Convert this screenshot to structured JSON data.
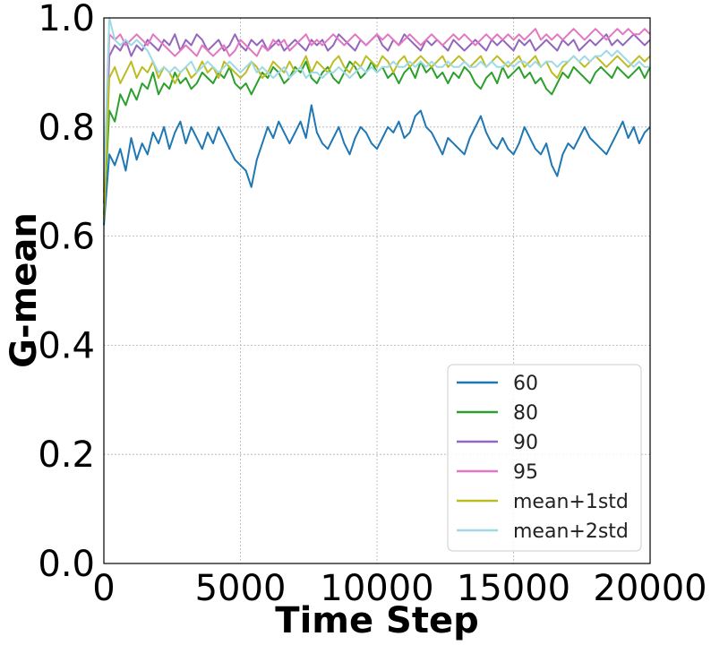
{
  "chart_data": {
    "type": "line",
    "xlabel": "Time Step",
    "ylabel": "G-mean",
    "xlim": [
      0,
      20000
    ],
    "ylim": [
      0.0,
      1.0
    ],
    "xticks": [
      0,
      5000,
      10000,
      15000,
      20000
    ],
    "xtick_labels": [
      "0",
      "5000",
      "10000",
      "15000",
      "20000"
    ],
    "yticks": [
      0.0,
      0.2,
      0.4,
      0.6,
      0.8,
      1.0
    ],
    "ytick_labels": [
      "0.0",
      "0.2",
      "0.4",
      "0.6",
      "0.8",
      "1.0"
    ],
    "grid": true,
    "legend_position": "lower-right",
    "x": [
      0,
      200,
      400,
      600,
      800,
      1000,
      1200,
      1400,
      1600,
      1800,
      2000,
      2200,
      2400,
      2600,
      2800,
      3000,
      3200,
      3400,
      3600,
      3800,
      4000,
      4200,
      4400,
      4600,
      4800,
      5000,
      5200,
      5400,
      5600,
      5800,
      6000,
      6200,
      6400,
      6600,
      6800,
      7000,
      7200,
      7400,
      7600,
      7800,
      8000,
      8200,
      8400,
      8600,
      8800,
      9000,
      9200,
      9400,
      9600,
      9800,
      10000,
      10200,
      10400,
      10600,
      10800,
      11000,
      11200,
      11400,
      11600,
      11800,
      12000,
      12200,
      12400,
      12600,
      12800,
      13000,
      13200,
      13400,
      13600,
      13800,
      14000,
      14200,
      14400,
      14600,
      14800,
      15000,
      15200,
      15400,
      15600,
      15800,
      16000,
      16200,
      16400,
      16600,
      16800,
      17000,
      17200,
      17400,
      17600,
      17800,
      18000,
      18200,
      18400,
      18600,
      18800,
      19000,
      19200,
      19400,
      19600,
      19800,
      20000
    ],
    "series": [
      {
        "name": "60",
        "color": "#1f77b4",
        "values": [
          0.62,
          0.75,
          0.73,
          0.76,
          0.72,
          0.78,
          0.74,
          0.77,
          0.75,
          0.79,
          0.77,
          0.8,
          0.76,
          0.79,
          0.81,
          0.77,
          0.8,
          0.78,
          0.76,
          0.79,
          0.77,
          0.8,
          0.78,
          0.76,
          0.74,
          0.73,
          0.72,
          0.69,
          0.74,
          0.77,
          0.8,
          0.78,
          0.81,
          0.79,
          0.77,
          0.79,
          0.81,
          0.78,
          0.84,
          0.79,
          0.77,
          0.76,
          0.78,
          0.8,
          0.77,
          0.75,
          0.78,
          0.8,
          0.79,
          0.77,
          0.76,
          0.78,
          0.8,
          0.79,
          0.81,
          0.78,
          0.79,
          0.82,
          0.83,
          0.8,
          0.79,
          0.77,
          0.75,
          0.78,
          0.77,
          0.76,
          0.75,
          0.78,
          0.8,
          0.82,
          0.79,
          0.77,
          0.76,
          0.78,
          0.76,
          0.75,
          0.77,
          0.8,
          0.78,
          0.76,
          0.75,
          0.77,
          0.73,
          0.71,
          0.75,
          0.77,
          0.76,
          0.78,
          0.8,
          0.78,
          0.77,
          0.76,
          0.75,
          0.77,
          0.79,
          0.81,
          0.78,
          0.8,
          0.77,
          0.79,
          0.8
        ]
      },
      {
        "name": "80",
        "color": "#2ca02c",
        "values": [
          0.64,
          0.83,
          0.81,
          0.86,
          0.84,
          0.87,
          0.85,
          0.88,
          0.87,
          0.9,
          0.86,
          0.88,
          0.87,
          0.9,
          0.88,
          0.89,
          0.87,
          0.88,
          0.9,
          0.89,
          0.88,
          0.9,
          0.89,
          0.91,
          0.88,
          0.87,
          0.88,
          0.86,
          0.88,
          0.9,
          0.89,
          0.91,
          0.9,
          0.88,
          0.89,
          0.91,
          0.9,
          0.92,
          0.89,
          0.88,
          0.9,
          0.91,
          0.89,
          0.88,
          0.9,
          0.92,
          0.91,
          0.89,
          0.9,
          0.92,
          0.9,
          0.91,
          0.89,
          0.9,
          0.88,
          0.9,
          0.91,
          0.89,
          0.92,
          0.9,
          0.91,
          0.89,
          0.9,
          0.88,
          0.9,
          0.89,
          0.91,
          0.9,
          0.88,
          0.87,
          0.89,
          0.9,
          0.88,
          0.91,
          0.89,
          0.9,
          0.91,
          0.89,
          0.9,
          0.88,
          0.89,
          0.87,
          0.86,
          0.88,
          0.9,
          0.89,
          0.91,
          0.9,
          0.89,
          0.88,
          0.9,
          0.91,
          0.9,
          0.89,
          0.91,
          0.9,
          0.89,
          0.9,
          0.91,
          0.89,
          0.91
        ]
      },
      {
        "name": "90",
        "color": "#9467bd",
        "values": [
          0.66,
          0.93,
          0.95,
          0.94,
          0.96,
          0.93,
          0.95,
          0.94,
          0.96,
          0.95,
          0.94,
          0.96,
          0.95,
          0.97,
          0.94,
          0.96,
          0.95,
          0.97,
          0.96,
          0.94,
          0.95,
          0.96,
          0.94,
          0.95,
          0.97,
          0.95,
          0.94,
          0.96,
          0.95,
          0.96,
          0.94,
          0.95,
          0.96,
          0.94,
          0.95,
          0.96,
          0.95,
          0.94,
          0.96,
          0.95,
          0.96,
          0.94,
          0.95,
          0.97,
          0.96,
          0.95,
          0.94,
          0.96,
          0.95,
          0.96,
          0.97,
          0.95,
          0.94,
          0.96,
          0.95,
          0.97,
          0.96,
          0.95,
          0.94,
          0.96,
          0.95,
          0.96,
          0.95,
          0.94,
          0.96,
          0.95,
          0.94,
          0.95,
          0.96,
          0.95,
          0.94,
          0.96,
          0.95,
          0.96,
          0.95,
          0.94,
          0.96,
          0.95,
          0.96,
          0.94,
          0.95,
          0.96,
          0.95,
          0.94,
          0.96,
          0.95,
          0.96,
          0.94,
          0.95,
          0.96,
          0.95,
          0.96,
          0.97,
          0.95,
          0.96,
          0.95,
          0.96,
          0.97,
          0.96,
          0.95,
          0.96
        ]
      },
      {
        "name": "95",
        "color": "#e377c2",
        "values": [
          0.68,
          0.97,
          0.96,
          0.97,
          0.95,
          0.96,
          0.97,
          0.96,
          0.95,
          0.97,
          0.96,
          0.95,
          0.94,
          0.93,
          0.94,
          0.95,
          0.94,
          0.93,
          0.95,
          0.94,
          0.93,
          0.94,
          0.95,
          0.93,
          0.94,
          0.96,
          0.95,
          0.94,
          0.93,
          0.95,
          0.94,
          0.96,
          0.95,
          0.96,
          0.94,
          0.95,
          0.96,
          0.97,
          0.95,
          0.96,
          0.95,
          0.96,
          0.97,
          0.96,
          0.95,
          0.96,
          0.97,
          0.96,
          0.95,
          0.96,
          0.97,
          0.96,
          0.97,
          0.96,
          0.95,
          0.96,
          0.97,
          0.96,
          0.95,
          0.96,
          0.97,
          0.96,
          0.95,
          0.96,
          0.97,
          0.96,
          0.97,
          0.96,
          0.95,
          0.96,
          0.97,
          0.96,
          0.97,
          0.96,
          0.97,
          0.96,
          0.97,
          0.96,
          0.97,
          0.98,
          0.96,
          0.97,
          0.96,
          0.97,
          0.96,
          0.97,
          0.98,
          0.97,
          0.96,
          0.97,
          0.98,
          0.97,
          0.96,
          0.97,
          0.98,
          0.97,
          0.98,
          0.97,
          0.97,
          0.98,
          0.97
        ]
      },
      {
        "name": "mean+1std",
        "color": "#bcbd22",
        "values": [
          0.63,
          0.89,
          0.91,
          0.88,
          0.9,
          0.92,
          0.89,
          0.91,
          0.9,
          0.92,
          0.89,
          0.91,
          0.9,
          0.88,
          0.9,
          0.91,
          0.89,
          0.9,
          0.92,
          0.9,
          0.91,
          0.89,
          0.92,
          0.91,
          0.9,
          0.89,
          0.9,
          0.92,
          0.91,
          0.89,
          0.9,
          0.92,
          0.91,
          0.9,
          0.92,
          0.9,
          0.91,
          0.93,
          0.9,
          0.92,
          0.91,
          0.9,
          0.92,
          0.93,
          0.91,
          0.9,
          0.92,
          0.91,
          0.93,
          0.92,
          0.91,
          0.93,
          0.92,
          0.9,
          0.92,
          0.93,
          0.91,
          0.92,
          0.93,
          0.92,
          0.91,
          0.92,
          0.93,
          0.91,
          0.92,
          0.93,
          0.92,
          0.91,
          0.92,
          0.93,
          0.91,
          0.92,
          0.93,
          0.92,
          0.91,
          0.92,
          0.93,
          0.91,
          0.92,
          0.93,
          0.91,
          0.92,
          0.9,
          0.89,
          0.91,
          0.92,
          0.93,
          0.92,
          0.91,
          0.92,
          0.93,
          0.92,
          0.91,
          0.92,
          0.93,
          0.92,
          0.91,
          0.92,
          0.93,
          0.92,
          0.93
        ]
      },
      {
        "name": "mean+2std",
        "color": "#9edae5",
        "values": [
          0.7,
          1.0,
          0.96,
          0.95,
          0.96,
          0.95,
          0.96,
          0.95,
          0.94,
          0.92,
          0.9,
          0.91,
          0.9,
          0.91,
          0.9,
          0.91,
          0.92,
          0.9,
          0.91,
          0.92,
          0.91,
          0.9,
          0.91,
          0.92,
          0.91,
          0.9,
          0.91,
          0.92,
          0.9,
          0.91,
          0.9,
          0.89,
          0.9,
          0.91,
          0.89,
          0.9,
          0.91,
          0.89,
          0.9,
          0.9,
          0.89,
          0.9,
          0.9,
          0.91,
          0.9,
          0.89,
          0.9,
          0.91,
          0.9,
          0.91,
          0.9,
          0.91,
          0.91,
          0.92,
          0.91,
          0.91,
          0.92,
          0.91,
          0.92,
          0.91,
          0.92,
          0.91,
          0.91,
          0.92,
          0.91,
          0.91,
          0.92,
          0.91,
          0.91,
          0.92,
          0.91,
          0.92,
          0.91,
          0.91,
          0.92,
          0.91,
          0.92,
          0.92,
          0.91,
          0.92,
          0.91,
          0.92,
          0.92,
          0.91,
          0.92,
          0.92,
          0.93,
          0.92,
          0.93,
          0.92,
          0.93,
          0.93,
          0.94,
          0.93,
          0.94,
          0.93,
          0.92,
          0.91,
          0.92,
          0.91,
          0.91
        ]
      }
    ]
  }
}
